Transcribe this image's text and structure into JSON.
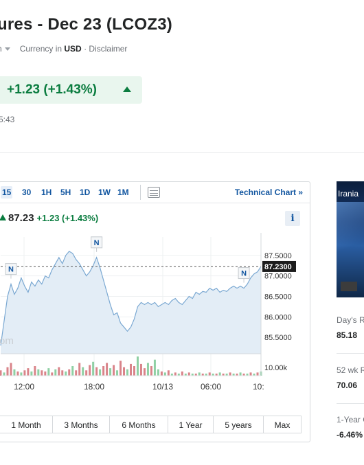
{
  "header": {
    "title": "ures - Dec 23 (LCOZ3)",
    "exchange_fragment": "n",
    "currency_prefix": "Currency in",
    "currency": "USD",
    "disclaimer": "· Disclaimer",
    "change": "+1.23  (+1.43%)",
    "time_fragment": "5:43"
  },
  "toolbar": {
    "timeframes": [
      "15",
      "30",
      "1H",
      "5H",
      "1D",
      "1W",
      "1M"
    ],
    "active_timeframe": "15",
    "technical_chart": "Technical Chart »"
  },
  "quote": {
    "price": "87.23",
    "change": "+1.23 (+1.43%)"
  },
  "info_icon": "i",
  "watermark": "om",
  "ranges": [
    "1 Month",
    "3 Months",
    "6 Months",
    "1 Year",
    "5 years",
    "Max"
  ],
  "news": {
    "caption": "Irania"
  },
  "stats": [
    {
      "label": "Day's R",
      "value": "85.18"
    },
    {
      "label": "52 wk R",
      "value": "70.06"
    },
    {
      "label": "1-Year C",
      "value": "-6.46%"
    }
  ],
  "colors": {
    "up": "#0a7c3f",
    "link": "#1256a0",
    "area_fill": "#e3edf6",
    "area_line": "#7aa8d2",
    "vol_up": "#8fd0a4",
    "vol_down": "#d9848a"
  },
  "chart_data": {
    "type": "area",
    "x_ticks": [
      "12:00",
      "18:00",
      "10/13",
      "06:00",
      "10:"
    ],
    "y_ticks": [
      "87.5000",
      "87.0000",
      "86.5000",
      "86.0000",
      "85.5000"
    ],
    "ylim": [
      85.1,
      87.95
    ],
    "last_price_label": "87.2300",
    "last_price": 87.23,
    "volume_tick": "10.00k",
    "markers": [
      {
        "label": "N",
        "index": 3
      },
      {
        "label": "N",
        "index": 28
      },
      {
        "label": "N",
        "index": 71
      }
    ],
    "values": [
      85.3,
      85.9,
      86.5,
      86.8,
      86.55,
      86.7,
      86.95,
      86.75,
      86.6,
      86.85,
      86.75,
      86.9,
      86.8,
      87.0,
      86.95,
      87.15,
      87.3,
      87.45,
      87.3,
      87.5,
      87.6,
      87.55,
      87.4,
      87.3,
      87.15,
      87.0,
      87.1,
      87.25,
      87.45,
      87.2,
      86.9,
      86.6,
      86.3,
      86.05,
      86.1,
      85.85,
      85.75,
      85.65,
      85.75,
      85.95,
      86.25,
      86.35,
      86.3,
      86.35,
      86.3,
      86.35,
      86.25,
      86.3,
      86.35,
      86.3,
      86.4,
      86.45,
      86.35,
      86.3,
      86.4,
      86.5,
      86.45,
      86.6,
      86.55,
      86.62,
      86.6,
      86.7,
      86.65,
      86.7,
      86.6,
      86.65,
      86.62,
      86.7,
      86.75,
      86.7,
      86.75,
      86.7,
      86.8,
      86.95,
      87.05,
      87.1,
      87.23
    ],
    "volume": [
      5,
      3,
      8,
      12,
      6,
      4,
      3,
      5,
      7,
      4,
      9,
      6,
      5,
      4,
      7,
      3,
      6,
      8,
      5,
      4,
      6,
      9,
      5,
      12,
      8,
      5,
      10,
      13,
      8,
      6,
      9,
      12,
      7,
      10,
      5,
      14,
      8,
      6,
      11,
      9,
      18,
      11,
      7,
      12,
      9,
      15,
      6,
      4,
      3,
      5,
      2,
      3,
      2,
      4,
      2,
      3,
      2,
      2,
      3,
      2,
      2,
      3,
      2,
      2,
      3,
      2,
      2,
      3,
      2,
      2,
      3,
      2,
      2,
      3,
      2,
      3,
      4
    ],
    "volume_dir": [
      0,
      1,
      0,
      0,
      1,
      0,
      1,
      0,
      0,
      1,
      0,
      1,
      0,
      0,
      1,
      0,
      1,
      0,
      0,
      1,
      0,
      1,
      0,
      0,
      1,
      0,
      0,
      1,
      0,
      1,
      0,
      0,
      1,
      0,
      1,
      0,
      0,
      1,
      0,
      0,
      1,
      0,
      0,
      1,
      0,
      1,
      1,
      0,
      1,
      0,
      1,
      0,
      1,
      0,
      1,
      0,
      1,
      0,
      1,
      0,
      1,
      0,
      1,
      0,
      1,
      0,
      1,
      0,
      1,
      0,
      1,
      0,
      1,
      0,
      1,
      0,
      1
    ]
  }
}
